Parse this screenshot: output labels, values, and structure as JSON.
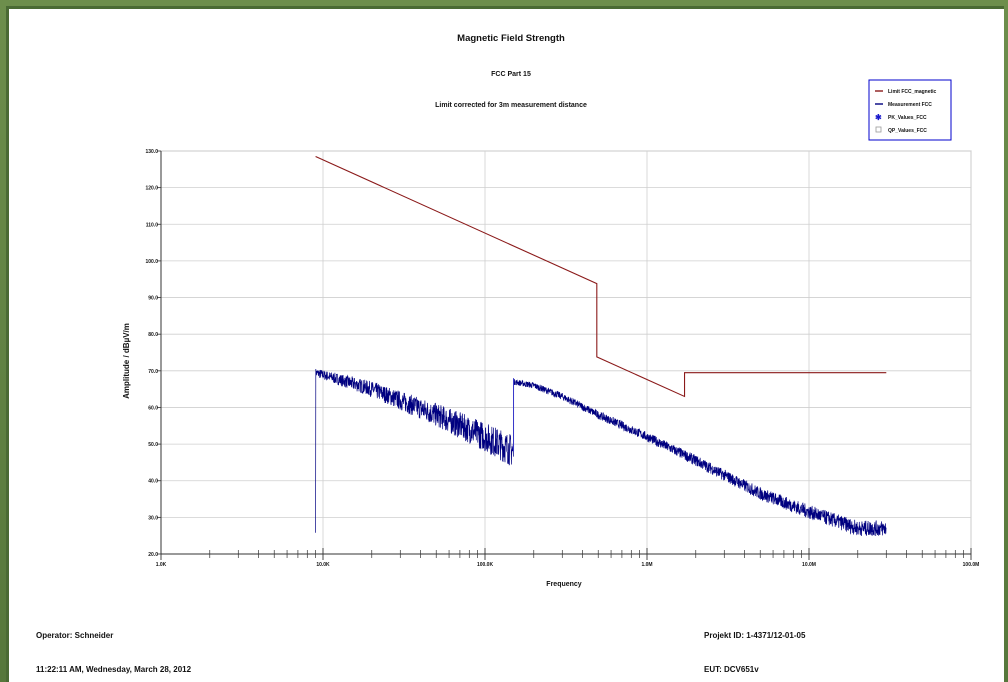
{
  "chart_data": {
    "type": "line",
    "title": "Magnetic Field Strength",
    "subtitle": "FCC Part 15",
    "subtitle2": "Limit corrected for 3m measurement distance",
    "xlabel": "Frequency",
    "ylabel": "Amplitude / dBµV/m",
    "xscale": "log",
    "xlim": [
      1000,
      100000000
    ],
    "ylim": [
      20,
      130
    ],
    "grid": true,
    "legend_position": "top-right",
    "x_tick_labels": [
      "1.0K",
      "10.0K",
      "100.0K",
      "1.0M",
      "10.0M",
      "100.0M"
    ],
    "x_tick_values": [
      1000,
      10000,
      100000,
      1000000,
      10000000,
      100000000
    ],
    "y_tick_labels": [
      "20.0",
      "30.0",
      "40.0",
      "50.0",
      "60.0",
      "70.0",
      "80.0",
      "90.0",
      "100.0",
      "110.0",
      "120.0",
      "130.0"
    ],
    "y_tick_values": [
      20,
      30,
      40,
      50,
      60,
      70,
      80,
      90,
      100,
      110,
      120,
      130
    ],
    "legend": [
      {
        "name": "Limit FCC_magnetic",
        "color": "#8b1a1a",
        "marker": "line"
      },
      {
        "name": "Measurement FCC",
        "color": "#000080",
        "marker": "line"
      },
      {
        "name": "PK_Values_FCC",
        "color": "#1a1acc",
        "marker": "asterisk"
      },
      {
        "name": "QP_Values_FCC",
        "color": "#999999",
        "marker": "square"
      }
    ],
    "series": [
      {
        "name": "Limit FCC_magnetic",
        "color": "#8b1a1a",
        "x": [
          9000,
          490000,
          490000,
          1705000,
          1705000,
          30000000
        ],
        "y": [
          128.5,
          93.8,
          73.8,
          63.0,
          69.5,
          69.5
        ]
      },
      {
        "name": "Measurement FCC",
        "color": "#000080",
        "x": [
          9000,
          20000,
          50000,
          100000,
          150000,
          150000,
          200000,
          300000,
          500000,
          1000000,
          2000000,
          5000000,
          10000000,
          20000000,
          30000000
        ],
        "y": [
          69.5,
          65.0,
          58.0,
          52.0,
          48.0,
          67.0,
          66.0,
          63.0,
          58.0,
          52.0,
          45.5,
          36.5,
          31.5,
          27.0,
          27.0
        ]
      }
    ]
  },
  "footer": {
    "operator": "Operator: Schneider",
    "timestamp": "11:22:11 AM, Wednesday, March 28, 2012",
    "project": "Projekt ID: 1-4371/12-01-05",
    "eut": "EUT: DCV651v"
  }
}
